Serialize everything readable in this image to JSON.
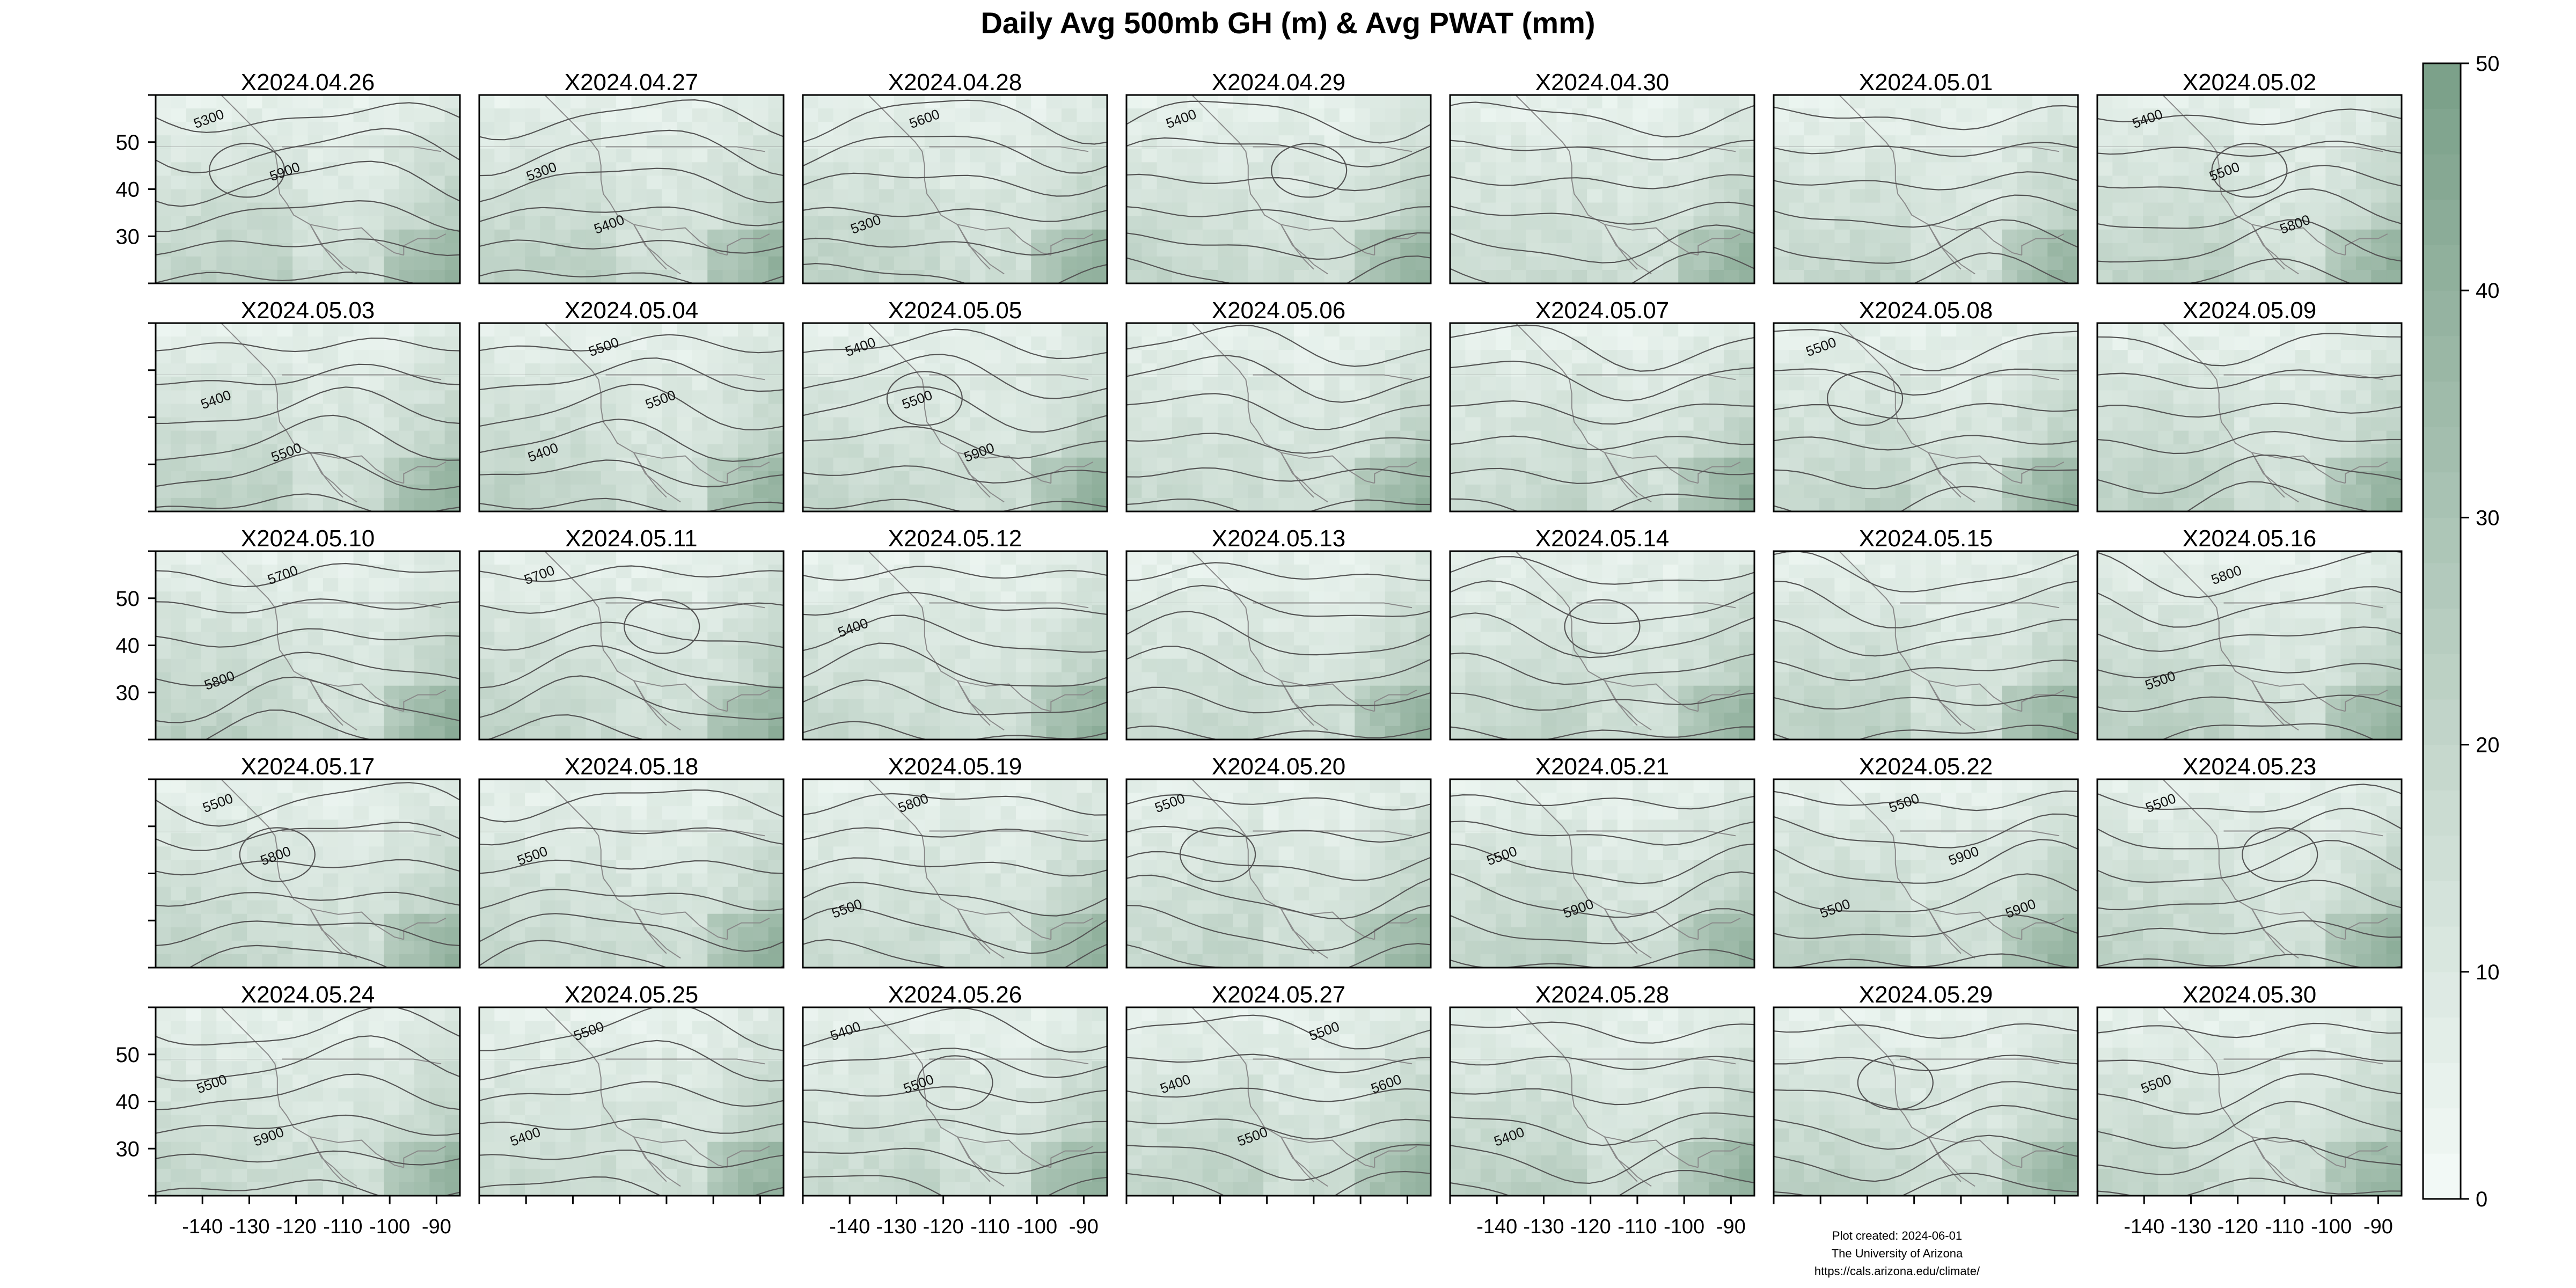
{
  "chart_data": {
    "type": "heatmap",
    "title": "Daily Avg 500mb GH (m) & Avg PWAT (mm)",
    "layout": {
      "rows": 5,
      "cols": 7
    },
    "panels": [
      {
        "label": "X2024.04.26",
        "contours": [
          "5300",
          "5900"
        ]
      },
      {
        "label": "X2024.04.27",
        "contours": [
          "5300",
          "5400"
        ]
      },
      {
        "label": "X2024.04.28",
        "contours": [
          "5300",
          "5600"
        ]
      },
      {
        "label": "X2024.04.29",
        "contours": [
          "5400"
        ]
      },
      {
        "label": "X2024.04.30",
        "contours": []
      },
      {
        "label": "X2024.05.01",
        "contours": []
      },
      {
        "label": "X2024.05.02",
        "contours": [
          "5400",
          "5500",
          "5800"
        ]
      },
      {
        "label": "X2024.05.03",
        "contours": [
          "5400",
          "5500"
        ]
      },
      {
        "label": "X2024.05.04",
        "contours": [
          "5400",
          "5500",
          "5500"
        ]
      },
      {
        "label": "X2024.05.05",
        "contours": [
          "5400",
          "5500",
          "5900"
        ]
      },
      {
        "label": "X2024.05.06",
        "contours": []
      },
      {
        "label": "X2024.05.07",
        "contours": []
      },
      {
        "label": "X2024.05.08",
        "contours": [
          "5500"
        ]
      },
      {
        "label": "X2024.05.09",
        "contours": []
      },
      {
        "label": "X2024.05.10",
        "contours": [
          "5800",
          "5700"
        ]
      },
      {
        "label": "X2024.05.11",
        "contours": [
          "5700"
        ]
      },
      {
        "label": "X2024.05.12",
        "contours": [
          "5400"
        ]
      },
      {
        "label": "X2024.05.13",
        "contours": []
      },
      {
        "label": "X2024.05.14",
        "contours": []
      },
      {
        "label": "X2024.05.15",
        "contours": []
      },
      {
        "label": "X2024.05.16",
        "contours": [
          "5500",
          "5800"
        ]
      },
      {
        "label": "X2024.05.17",
        "contours": [
          "5500",
          "5800"
        ]
      },
      {
        "label": "X2024.05.18",
        "contours": [
          "5500"
        ]
      },
      {
        "label": "X2024.05.19",
        "contours": [
          "5500",
          "5800"
        ]
      },
      {
        "label": "X2024.05.20",
        "contours": [
          "5500"
        ]
      },
      {
        "label": "X2024.05.21",
        "contours": [
          "5500",
          "5900"
        ]
      },
      {
        "label": "X2024.05.22",
        "contours": [
          "5500",
          "5500",
          "5900",
          "5900"
        ]
      },
      {
        "label": "X2024.05.23",
        "contours": [
          "5500"
        ]
      },
      {
        "label": "X2024.05.24",
        "contours": [
          "5500",
          "5900"
        ]
      },
      {
        "label": "X2024.05.25",
        "contours": [
          "5400",
          "5500"
        ]
      },
      {
        "label": "X2024.05.26",
        "contours": [
          "5400",
          "5500"
        ]
      },
      {
        "label": "X2024.05.27",
        "contours": [
          "5400",
          "5500",
          "5500",
          "5600"
        ]
      },
      {
        "label": "X2024.05.28",
        "contours": [
          "5400"
        ]
      },
      {
        "label": "X2024.05.29",
        "contours": []
      },
      {
        "label": "X2024.05.30",
        "contours": [
          "5500"
        ]
      }
    ],
    "x_axis": {
      "ticks": [
        -140,
        -130,
        -120,
        -110,
        -100,
        -90
      ],
      "tick_labels": [
        "-140",
        "-130",
        "-120",
        "-110",
        "-100",
        "-90"
      ],
      "range": [
        -150,
        -85
      ],
      "labeled_columns": [
        0,
        2,
        4,
        6
      ]
    },
    "y_axis": {
      "ticks": [
        30,
        40,
        50
      ],
      "tick_labels": [
        "30",
        "40",
        "50"
      ],
      "range": [
        20,
        60
      ],
      "labeled_rows": [
        0,
        2,
        4
      ]
    },
    "colorbar": {
      "min": 0,
      "max": 50,
      "ticks": [
        0,
        10,
        20,
        30,
        40,
        50
      ],
      "tick_labels": [
        "0",
        "10",
        "20",
        "30",
        "40",
        "50"
      ],
      "color_low": "#f4fbf8",
      "color_high": "#7a9f88"
    },
    "legend_position": "right",
    "grid": false
  },
  "footer": {
    "lines": [
      "Plot created: 2024-06-01",
      "The University of Arizona",
      "https://cals.arizona.edu/climate/"
    ]
  },
  "colors": {
    "contour": "#555555",
    "coast": "#8a8a8a",
    "frame": "#000000",
    "missing": "#ffffff"
  }
}
